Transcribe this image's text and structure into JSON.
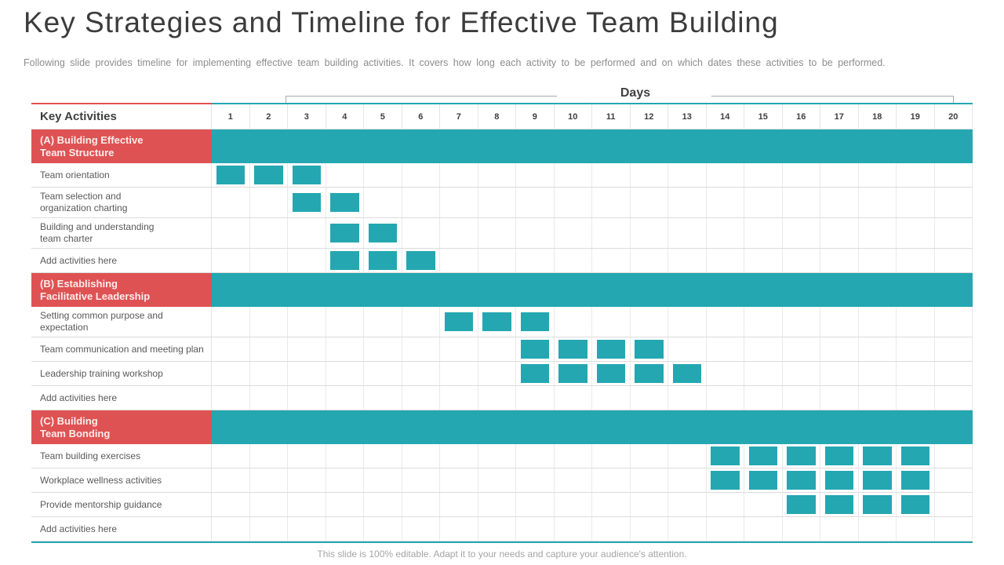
{
  "slide": {
    "title": "Key Strategies and Timeline for Effective Team Building",
    "subtitle": "Following slide provides timeline for implementing effective team building activities. It covers how long each activity to be performed and on which dates these activities to be performed.",
    "footer": "This slide is 100% editable. Adapt it to your needs and capture your audience's attention."
  },
  "colors": {
    "teal": "#24a7b1",
    "red": "#df5253",
    "grid_line": "#e5e5e5",
    "text_dark": "#3f3f3f",
    "text_gray": "#595959"
  },
  "chart_data": {
    "type": "table",
    "subtype": "gantt",
    "title": "Days",
    "xlabel": "Days",
    "columns_header": "Key Activities",
    "day_labels": [
      "1",
      "2",
      "3",
      "4",
      "5",
      "6",
      "7",
      "8",
      "9",
      "10",
      "11",
      "12",
      "13",
      "14",
      "15",
      "16",
      "17",
      "18",
      "19",
      "20"
    ],
    "axis_range": [
      1,
      20
    ],
    "rows": [
      {
        "kind": "section",
        "label": "(A) Building Effective\nTeam Structure",
        "band": [
          1,
          20
        ]
      },
      {
        "kind": "activity",
        "lines": 1,
        "label": "Team orientation",
        "bars": [
          1,
          2,
          3
        ]
      },
      {
        "kind": "activity",
        "lines": 2,
        "label": "Team selection and\norganization charting",
        "bars": [
          3,
          4
        ]
      },
      {
        "kind": "activity",
        "lines": 2,
        "label": "Building and understanding\nteam charter",
        "bars": [
          4,
          5
        ]
      },
      {
        "kind": "activity",
        "lines": 1,
        "label": "Add activities here",
        "bars": [
          4,
          5,
          6
        ]
      },
      {
        "kind": "section",
        "label": "(B) Establishing\nFacilitative Leadership",
        "band": [
          1,
          20
        ]
      },
      {
        "kind": "activity",
        "lines": 2,
        "label": "Setting common purpose and\nexpectation",
        "bars": [
          7,
          8,
          9
        ]
      },
      {
        "kind": "activity",
        "lines": 1,
        "label": "Team communication and meeting plan",
        "bars": [
          9,
          10,
          11,
          12
        ]
      },
      {
        "kind": "activity",
        "lines": 1,
        "label": "Leadership training workshop",
        "bars": [
          9,
          10,
          11,
          12,
          13
        ]
      },
      {
        "kind": "activity",
        "lines": 1,
        "label": "Add activities here",
        "bars": []
      },
      {
        "kind": "section",
        "label": "(C) Building\nTeam Bonding",
        "band": [
          1,
          20
        ]
      },
      {
        "kind": "activity",
        "lines": 1,
        "label": "Team building exercises",
        "bars": [
          14,
          15,
          16,
          17,
          18,
          19
        ]
      },
      {
        "kind": "activity",
        "lines": 1,
        "label": "Workplace wellness activities",
        "bars": [
          14,
          15,
          16,
          17,
          18,
          19
        ]
      },
      {
        "kind": "activity",
        "lines": 1,
        "label": "Provide mentorship guidance",
        "bars": [
          16,
          17,
          18,
          19
        ]
      },
      {
        "kind": "activity",
        "lines": 1,
        "label": "Add activities here",
        "bars": []
      }
    ]
  }
}
